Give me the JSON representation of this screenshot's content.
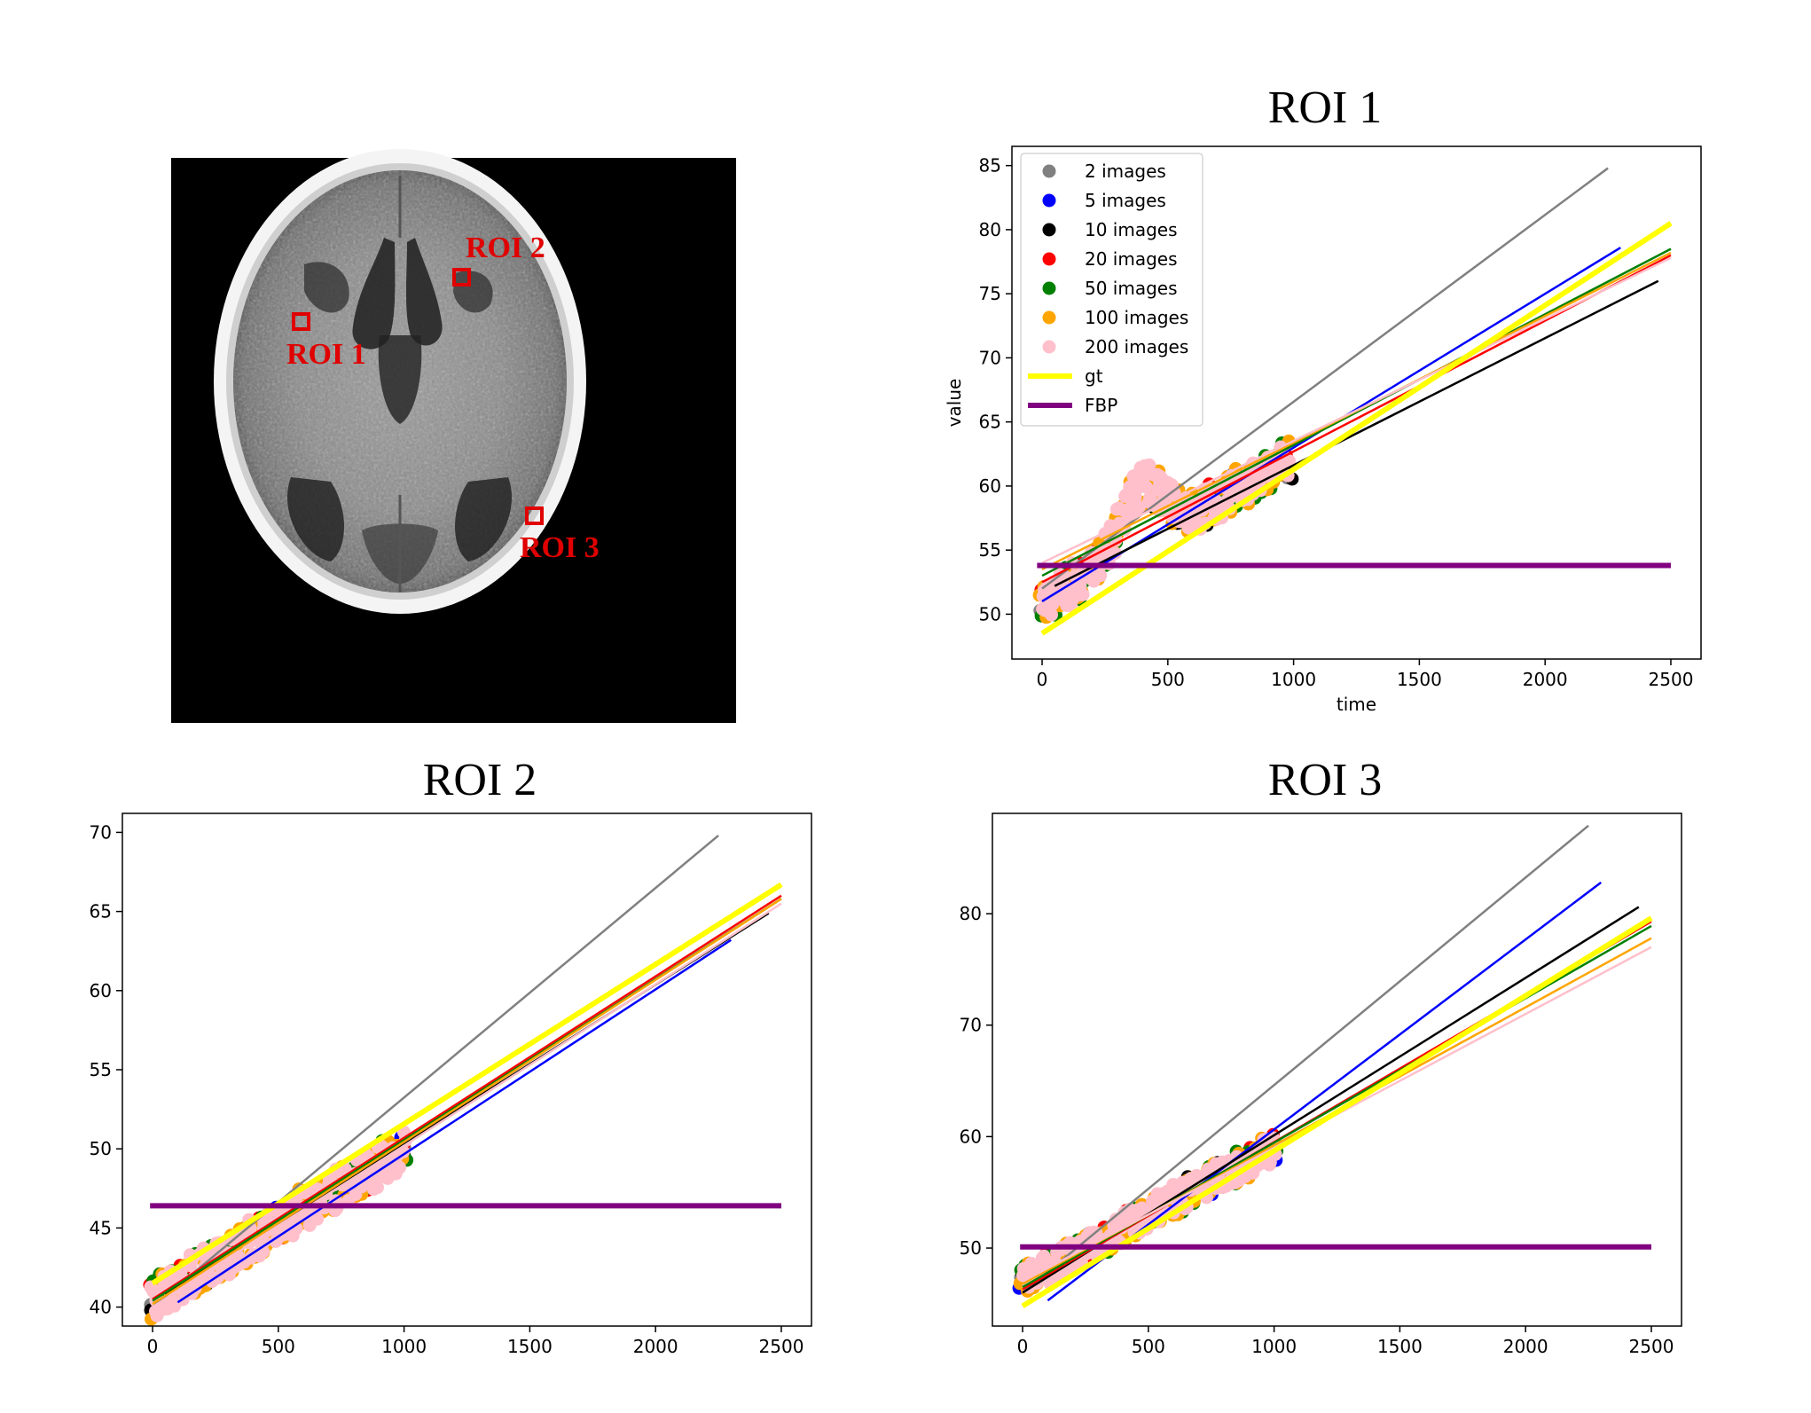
{
  "ct_image": {
    "labels": [
      {
        "name": "roi-1-label",
        "text": "ROI 1"
      },
      {
        "name": "roi-2-label",
        "text": "ROI 2"
      },
      {
        "name": "roi-3-label",
        "text": "ROI 3"
      }
    ]
  },
  "chart_data": [
    {
      "type": "scatter",
      "title": "ROI 1",
      "xlabel": "time",
      "ylabel": "value",
      "xlim": [
        -120,
        2620
      ],
      "ylim": [
        46.5,
        86.5
      ],
      "xticks": [
        0,
        500,
        1000,
        1500,
        2000,
        2500
      ],
      "yticks": [
        50,
        55,
        60,
        65,
        70,
        75,
        80,
        85
      ],
      "show_legend": true,
      "legend_position": "upper left",
      "legend": [
        {
          "label": "2 images",
          "color": "#808080",
          "kind": "marker"
        },
        {
          "label": "5 images",
          "color": "#0000ff",
          "kind": "marker"
        },
        {
          "label": "10 images",
          "color": "#000000",
          "kind": "marker"
        },
        {
          "label": "20 images",
          "color": "#ff0000",
          "kind": "marker"
        },
        {
          "label": "50 images",
          "color": "#008000",
          "kind": "marker"
        },
        {
          "label": "100 images",
          "color": "#ffa500",
          "kind": "marker"
        },
        {
          "label": "200 images",
          "color": "#ffc0cb",
          "kind": "marker"
        },
        {
          "label": "gt",
          "color": "#ffff00",
          "kind": "line"
        },
        {
          "label": "FBP",
          "color": "#800080",
          "kind": "line"
        }
      ],
      "fit_lines": [
        {
          "series": "2 images",
          "color": "#808080",
          "x0": 0,
          "y0": 52.0,
          "x1": 2250,
          "y1": 84.8,
          "width": 2.5
        },
        {
          "series": "5 images",
          "color": "#0000ff",
          "x0": 0,
          "y0": 51.0,
          "x1": 2300,
          "y1": 78.6,
          "width": 2.5
        },
        {
          "series": "10 images",
          "color": "#000000",
          "x0": 50,
          "y0": 52.2,
          "x1": 2450,
          "y1": 76.0,
          "width": 2.5
        },
        {
          "series": "20 images",
          "color": "#ff0000",
          "x0": 0,
          "y0": 52.5,
          "x1": 2500,
          "y1": 78.0,
          "width": 2.5
        },
        {
          "series": "50 images",
          "color": "#008000",
          "x0": 0,
          "y0": 53.0,
          "x1": 2500,
          "y1": 78.5,
          "width": 2.5
        },
        {
          "series": "100 images",
          "color": "#ffa500",
          "x0": 0,
          "y0": 53.5,
          "x1": 2500,
          "y1": 78.2,
          "width": 2.5
        },
        {
          "series": "200 images",
          "color": "#ffc0cb",
          "x0": 0,
          "y0": 54.0,
          "x1": 2500,
          "y1": 77.8,
          "width": 2.5
        },
        {
          "series": "gt",
          "color": "#ffff00",
          "x0": 0,
          "y0": 48.5,
          "x1": 2500,
          "y1": 80.5,
          "width": 6
        },
        {
          "series": "FBP",
          "color": "#800080",
          "x0": -20,
          "y0": 53.8,
          "x1": 2500,
          "y1": 53.8,
          "width": 6
        }
      ],
      "scatter_trend": {
        "x_start": 0,
        "y_start": 51.0,
        "x_end": 980,
        "y_end": 62.0,
        "noise": 1.6,
        "bump_x": 400,
        "bump_y": 4.5,
        "seed": 11
      },
      "scatter_series": [
        {
          "name": "2 images",
          "color": "#808080",
          "count": 2
        },
        {
          "name": "5 images",
          "color": "#0000ff",
          "count": 5
        },
        {
          "name": "10 images",
          "color": "#000000",
          "count": 10
        },
        {
          "name": "20 images",
          "color": "#ff0000",
          "count": 20
        },
        {
          "name": "50 images",
          "color": "#008000",
          "count": 50
        },
        {
          "name": "100 images",
          "color": "#ffa500",
          "count": 100
        },
        {
          "name": "200 images",
          "color": "#ffc0cb",
          "count": 200
        }
      ]
    },
    {
      "type": "scatter",
      "title": "ROI 2",
      "xlabel": "",
      "ylabel": "",
      "xlim": [
        -120,
        2620
      ],
      "ylim": [
        38.8,
        71.2
      ],
      "xticks": [
        0,
        500,
        1000,
        1500,
        2000,
        2500
      ],
      "yticks": [
        40,
        45,
        50,
        55,
        60,
        65,
        70
      ],
      "show_legend": false,
      "legend_position": "",
      "legend": [],
      "fit_lines": [
        {
          "series": "2 images",
          "color": "#808080",
          "x0": 0,
          "y0": 40.0,
          "x1": 2250,
          "y1": 69.8,
          "width": 2.5
        },
        {
          "series": "5 images",
          "color": "#0000ff",
          "x0": 100,
          "y0": 40.3,
          "x1": 2300,
          "y1": 63.2,
          "width": 2.5
        },
        {
          "series": "10 images",
          "color": "#000000",
          "x0": 50,
          "y0": 40.8,
          "x1": 2450,
          "y1": 64.9,
          "width": 2.5
        },
        {
          "series": "20 images",
          "color": "#ff0000",
          "x0": 0,
          "y0": 40.5,
          "x1": 2500,
          "y1": 66.0,
          "width": 2.5
        },
        {
          "series": "50 images",
          "color": "#008000",
          "x0": 0,
          "y0": 40.4,
          "x1": 2500,
          "y1": 65.8,
          "width": 2.5
        },
        {
          "series": "100 images",
          "color": "#ffa500",
          "x0": 0,
          "y0": 40.2,
          "x1": 2500,
          "y1": 65.8,
          "width": 2.5
        },
        {
          "series": "200 images",
          "color": "#ffc0cb",
          "x0": 0,
          "y0": 40.0,
          "x1": 2500,
          "y1": 65.5,
          "width": 2.5
        },
        {
          "series": "gt",
          "color": "#ffff00",
          "x0": 0,
          "y0": 41.5,
          "x1": 2500,
          "y1": 66.7,
          "width": 6
        },
        {
          "series": "FBP",
          "color": "#800080",
          "x0": -10,
          "y0": 46.4,
          "x1": 2500,
          "y1": 46.4,
          "width": 6
        }
      ],
      "scatter_trend": {
        "x_start": 0,
        "y_start": 40.5,
        "x_end": 1000,
        "y_end": 50.0,
        "noise": 1.3,
        "bump_x": 700,
        "bump_y": 0,
        "seed": 23
      },
      "scatter_series": [
        {
          "name": "2 images",
          "color": "#808080",
          "count": 2
        },
        {
          "name": "5 images",
          "color": "#0000ff",
          "count": 5
        },
        {
          "name": "10 images",
          "color": "#000000",
          "count": 10
        },
        {
          "name": "20 images",
          "color": "#ff0000",
          "count": 20
        },
        {
          "name": "50 images",
          "color": "#008000",
          "count": 50
        },
        {
          "name": "100 images",
          "color": "#ffa500",
          "count": 100
        },
        {
          "name": "200 images",
          "color": "#ffc0cb",
          "count": 200
        }
      ]
    },
    {
      "type": "scatter",
      "title": "ROI 3",
      "xlabel": "",
      "ylabel": "",
      "xlim": [
        -120,
        2620
      ],
      "ylim": [
        43.0,
        89.0
      ],
      "xticks": [
        0,
        500,
        1000,
        1500,
        2000,
        2500
      ],
      "yticks": [
        50,
        60,
        70,
        80
      ],
      "show_legend": false,
      "legend_position": "",
      "legend": [],
      "fit_lines": [
        {
          "series": "2 images",
          "color": "#808080",
          "x0": 0,
          "y0": 46.0,
          "x1": 2250,
          "y1": 87.9,
          "width": 2.5
        },
        {
          "series": "5 images",
          "color": "#0000ff",
          "x0": 100,
          "y0": 45.3,
          "x1": 2300,
          "y1": 82.8,
          "width": 2.5
        },
        {
          "series": "10 images",
          "color": "#000000",
          "x0": 0,
          "y0": 46.0,
          "x1": 2450,
          "y1": 80.6,
          "width": 2.5
        },
        {
          "series": "20 images",
          "color": "#ff0000",
          "x0": 0,
          "y0": 46.3,
          "x1": 2500,
          "y1": 79.3,
          "width": 2.5
        },
        {
          "series": "50 images",
          "color": "#008000",
          "x0": 0,
          "y0": 46.5,
          "x1": 2500,
          "y1": 78.9,
          "width": 2.5
        },
        {
          "series": "100 images",
          "color": "#ffa500",
          "x0": 0,
          "y0": 46.8,
          "x1": 2500,
          "y1": 77.8,
          "width": 2.5
        },
        {
          "series": "200 images",
          "color": "#ffc0cb",
          "x0": 0,
          "y0": 47.0,
          "x1": 2500,
          "y1": 77.0,
          "width": 2.5
        },
        {
          "series": "gt",
          "color": "#ffff00",
          "x0": 0,
          "y0": 44.8,
          "x1": 2500,
          "y1": 79.6,
          "width": 6
        },
        {
          "series": "FBP",
          "color": "#800080",
          "x0": -10,
          "y0": 50.1,
          "x1": 2500,
          "y1": 50.1,
          "width": 6
        }
      ],
      "scatter_trend": {
        "x_start": 0,
        "y_start": 47.0,
        "x_end": 1000,
        "y_end": 59.0,
        "noise": 1.4,
        "bump_x": 500,
        "bump_y": 0,
        "seed": 37
      },
      "scatter_series": [
        {
          "name": "2 images",
          "color": "#808080",
          "count": 2
        },
        {
          "name": "5 images",
          "color": "#0000ff",
          "count": 5
        },
        {
          "name": "10 images",
          "color": "#000000",
          "count": 10
        },
        {
          "name": "20 images",
          "color": "#ff0000",
          "count": 20
        },
        {
          "name": "50 images",
          "color": "#008000",
          "count": 50
        },
        {
          "name": "100 images",
          "color": "#ffa500",
          "count": 100
        },
        {
          "name": "200 images",
          "color": "#ffc0cb",
          "count": 200
        }
      ]
    }
  ]
}
